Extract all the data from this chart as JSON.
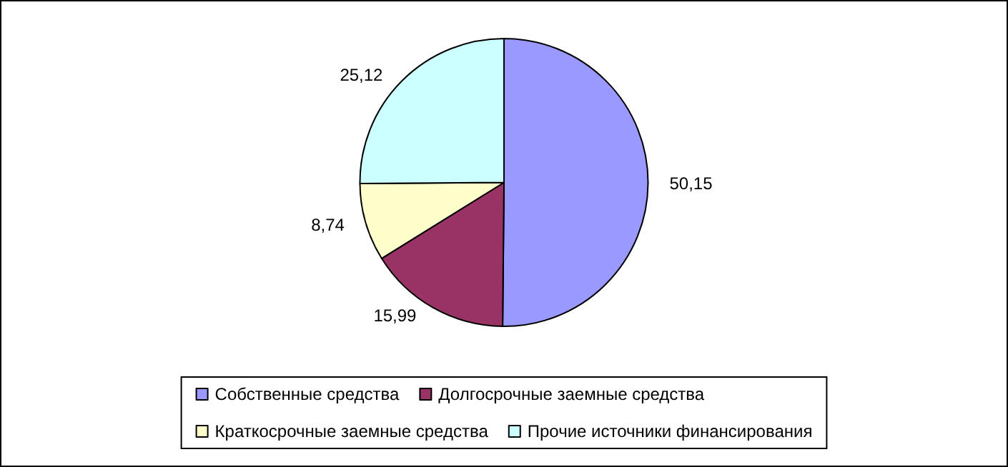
{
  "chart_data": {
    "type": "pie",
    "categories": [
      "Собственные средства",
      "Долгосрочные заемные средства",
      "Краткосрочные заемные средства",
      "Прочие источники финансирования"
    ],
    "values": [
      50.15,
      15.99,
      8.74,
      25.12
    ],
    "value_labels": [
      "50,15",
      "15,99",
      "8,74",
      "25,12"
    ],
    "colors": [
      "#9999ff",
      "#993366",
      "#ffffcc",
      "#ccffff"
    ],
    "legend": "bottom"
  }
}
